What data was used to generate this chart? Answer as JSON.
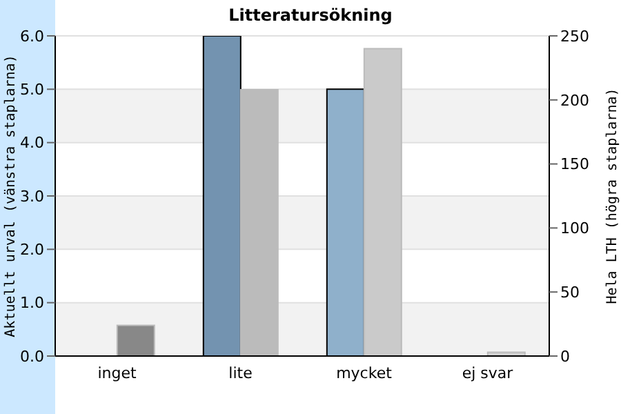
{
  "chart_data": {
    "type": "bar",
    "title": "Litteratursökning",
    "ylabel": "Aktuellt urval (vänstra staplarna)",
    "y2label": "Hela LTH (högra staplarna)",
    "categories": [
      "inget",
      "lite",
      "mycket",
      "ej svar"
    ],
    "series": [
      {
        "colors": [
          "#7393b0",
          "#7393b0",
          "#8fb0cb",
          "#8fb0cb"
        ],
        "values": [
          0,
          6,
          5,
          0
        ]
      },
      {
        "axis": "y2",
        "colors": [
          "#888888",
          "#bbbbbb",
          "#cacaca",
          "#d0d0d0"
        ],
        "values": [
          24,
          208,
          240,
          3
        ]
      }
    ],
    "ylim": [
      0,
      6
    ],
    "yticks": [
      {
        "value": 0,
        "label": "0.0"
      },
      {
        "value": 1,
        "label": "1.0"
      },
      {
        "value": 2,
        "label": "2.0"
      },
      {
        "value": 3,
        "label": "3.0"
      },
      {
        "value": 4,
        "label": "4.0"
      },
      {
        "value": 5,
        "label": "5.0"
      },
      {
        "value": 6,
        "label": "6.0"
      }
    ],
    "y2lim": [
      0,
      250
    ],
    "y2ticks": [
      0,
      50,
      100,
      150,
      200,
      250
    ],
    "grid": "y",
    "legend": false
  }
}
